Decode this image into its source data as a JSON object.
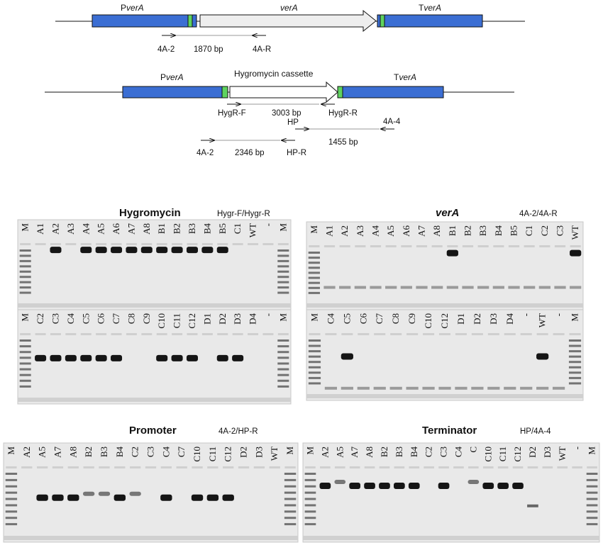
{
  "diagram_wt": {
    "promoter": {
      "prefix": "P",
      "italic": "verA"
    },
    "gene": "verA",
    "terminator": {
      "prefix": "T",
      "italic": "verA"
    },
    "primer_f": "4A-2",
    "product": "1870 bp",
    "primer_r": "4A-R"
  },
  "diagram_ko": {
    "promoter": {
      "prefix": "P",
      "italic": "verA"
    },
    "cassette": "Hygromycin cassette",
    "terminator": {
      "prefix": "T",
      "italic": "verA"
    },
    "hyg_f": "HygR-F",
    "hyg_product": "3003 bp",
    "hyg_r": "HygR-R",
    "hp": "HP",
    "a4": "4A-4",
    "hp_product": "1455 bp",
    "a2": "4A-2",
    "a2_product": "2346 bp",
    "hp_r": "HP-R"
  },
  "gels": [
    {
      "title": "Hygromycin",
      "primers": "Hygr-F/Hygr-R",
      "lanes": [
        [
          "M",
          "A1",
          "A2",
          "A3",
          "A4",
          "A5",
          "A6",
          "A7",
          "A8",
          "B1",
          "B2",
          "B3",
          "B4",
          "B5",
          "C1",
          "WT",
          "-",
          "M"
        ],
        [
          "M",
          "C2",
          "C3",
          "C4",
          "C5",
          "C6",
          "C7",
          "C8",
          "C9",
          "C10",
          "C11",
          "C12",
          "D1",
          "D2",
          "D3",
          "D4",
          "-",
          "M"
        ]
      ]
    },
    {
      "title": "verA",
      "primers": "4A-2/4A-R",
      "lanes": [
        [
          "M",
          "A1",
          "A2",
          "A3",
          "A4",
          "A5",
          "A6",
          "A7",
          "A8",
          "B1",
          "B2",
          "B3",
          "B4",
          "B5",
          "C1",
          "C2",
          "C3",
          "WT"
        ],
        [
          "M",
          "C4",
          "C5",
          "C6",
          "C7",
          "C8",
          "C9",
          "C10",
          "C12",
          "D1",
          "D2",
          "D3",
          "D4",
          "-",
          "WT",
          "-",
          "M"
        ]
      ]
    },
    {
      "title": "Promoter",
      "primers": "4A-2/HP-R",
      "lanes": [
        [
          "M",
          "A2",
          "A5",
          "A7",
          "A8",
          "B2",
          "B3",
          "B4",
          "C2",
          "C3",
          "C4",
          "C7",
          "C10",
          "C11",
          "C12",
          "D2",
          "D3",
          "WT",
          "M"
        ]
      ]
    },
    {
      "title": "Terminator",
      "primers": "HP/4A-4",
      "lanes": [
        [
          "M",
          "A2",
          "A5",
          "A7",
          "A8",
          "B2",
          "B3",
          "B4",
          "C2",
          "C3",
          "C4",
          "C",
          "C10",
          "C11",
          "C12",
          "D2",
          "D3",
          "WT",
          "-",
          "M"
        ]
      ]
    }
  ]
}
